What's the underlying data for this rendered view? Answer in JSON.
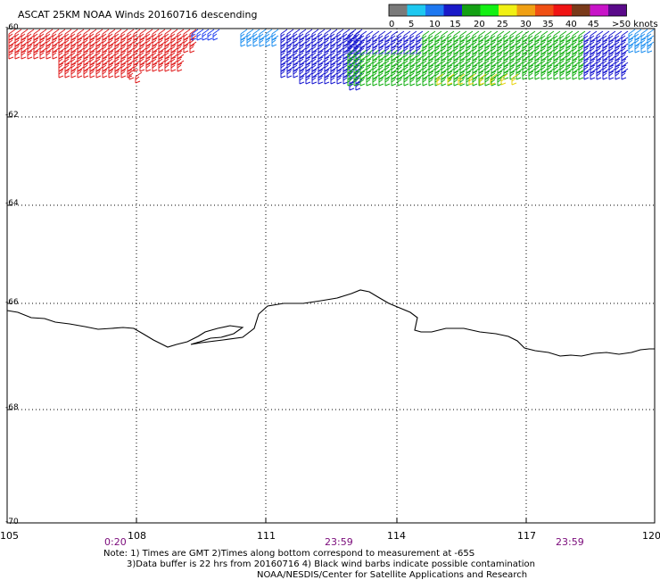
{
  "title": "ASCAT 25KM NOAA Winds 20160716 descending",
  "legend": {
    "labels": [
      "0",
      "5",
      "10",
      "15",
      "20",
      "25",
      "30",
      "35",
      "40",
      "45",
      ">50 knots"
    ],
    "colors": [
      "#7a7a7a",
      "#1ec8f0",
      "#1e78f0",
      "#1a1ac8",
      "#14a014",
      "#14f014",
      "#f0f014",
      "#f0a014",
      "#f05014",
      "#f01414",
      "#7a3a1a",
      "#c814c8",
      "#5a0a8a"
    ]
  },
  "axes": {
    "x_ticks": [
      "105",
      "108",
      "111",
      "114",
      "117",
      "120"
    ],
    "y_ticks": [
      "-60",
      "-62",
      "-64",
      "-66",
      "-68",
      "-70"
    ]
  },
  "times": [
    "0:20",
    "23:59",
    "23:59"
  ],
  "notes": {
    "line1": "Note: 1) Times are GMT 2)Times along bottom correspond to measurement at -65S",
    "line2": "3)Data buffer is 22 hrs from 20160716 4) Black wind barbs indicate possible contamination",
    "line3": "NOAA/NESDIS/Center for Satellite Applications and Research"
  }
}
